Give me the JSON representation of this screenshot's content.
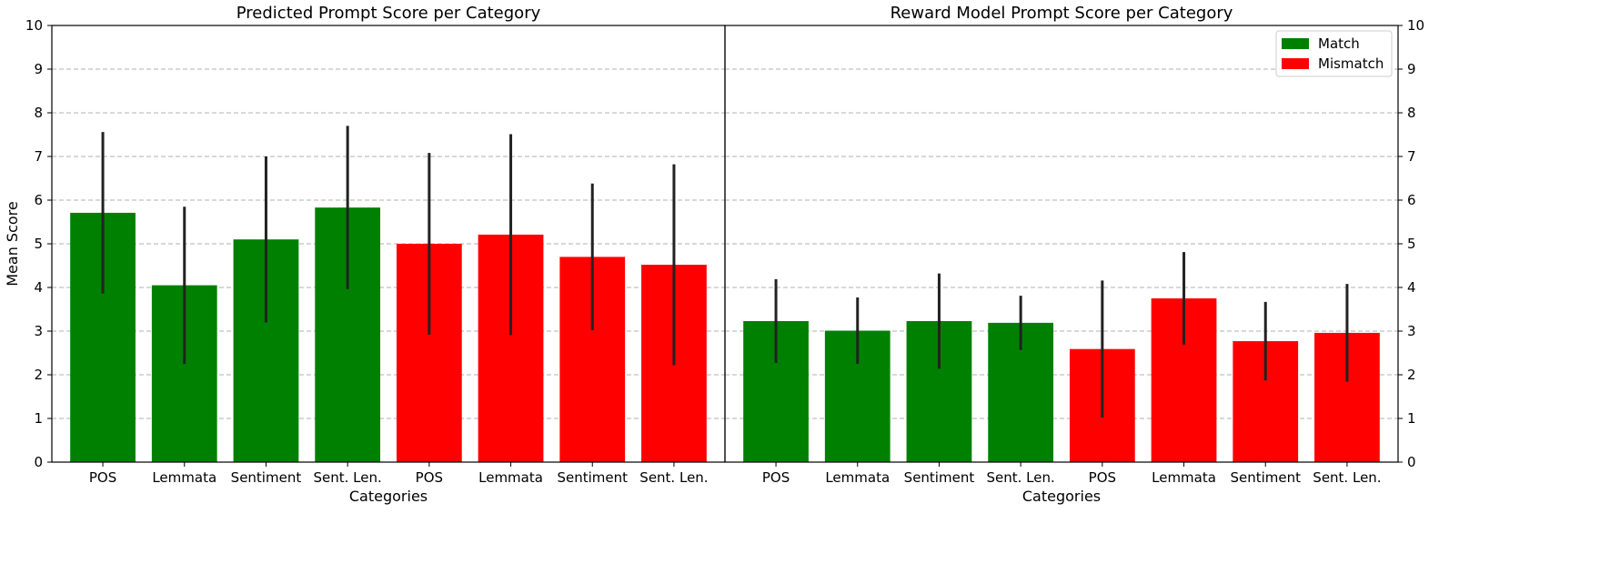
{
  "chart_data": [
    {
      "type": "bar",
      "title": "Predicted Prompt Score per Category",
      "xlabel": "Categories",
      "ylabel": "Mean Score",
      "ylim": [
        0,
        10
      ],
      "yticks": [
        0,
        1,
        2,
        3,
        4,
        5,
        6,
        7,
        8,
        9,
        10
      ],
      "grid": "y-dashed",
      "categories": [
        "POS",
        "Lemmata",
        "Sentiment",
        "Sent. Len.",
        "POS",
        "Lemmata",
        "Sentiment",
        "Sent. Len."
      ],
      "values": [
        5.71,
        4.05,
        5.1,
        5.83,
        5.0,
        5.21,
        4.7,
        4.52
      ],
      "errors": [
        1.85,
        1.8,
        1.9,
        1.87,
        2.08,
        2.3,
        1.68,
        2.3
      ],
      "groups": [
        "Match",
        "Match",
        "Match",
        "Match",
        "Mismatch",
        "Mismatch",
        "Mismatch",
        "Mismatch"
      ]
    },
    {
      "type": "bar",
      "title": "Reward Model Prompt Score per Category",
      "xlabel": "Categories",
      "ylabel": "",
      "ylim": [
        0,
        10
      ],
      "yticks": [
        0,
        1,
        2,
        3,
        4,
        5,
        6,
        7,
        8,
        9,
        10
      ],
      "grid": "y-dashed",
      "legend_position": "top-right",
      "categories": [
        "POS",
        "Lemmata",
        "Sentiment",
        "Sent. Len.",
        "POS",
        "Lemmata",
        "Sentiment",
        "Sent. Len."
      ],
      "values": [
        3.23,
        3.01,
        3.23,
        3.19,
        2.59,
        3.75,
        2.77,
        2.96
      ],
      "errors": [
        0.96,
        0.76,
        1.09,
        0.62,
        1.57,
        1.06,
        0.9,
        1.12
      ],
      "groups": [
        "Match",
        "Match",
        "Match",
        "Match",
        "Mismatch",
        "Mismatch",
        "Mismatch",
        "Mismatch"
      ]
    }
  ],
  "legend": [
    {
      "label": "Match",
      "color": "#008000"
    },
    {
      "label": "Mismatch",
      "color": "#ff0000"
    }
  ],
  "colors": {
    "Match": "#008000",
    "Mismatch": "#ff0000",
    "errorbar": "#222222",
    "grid": "#b0b0b0"
  }
}
